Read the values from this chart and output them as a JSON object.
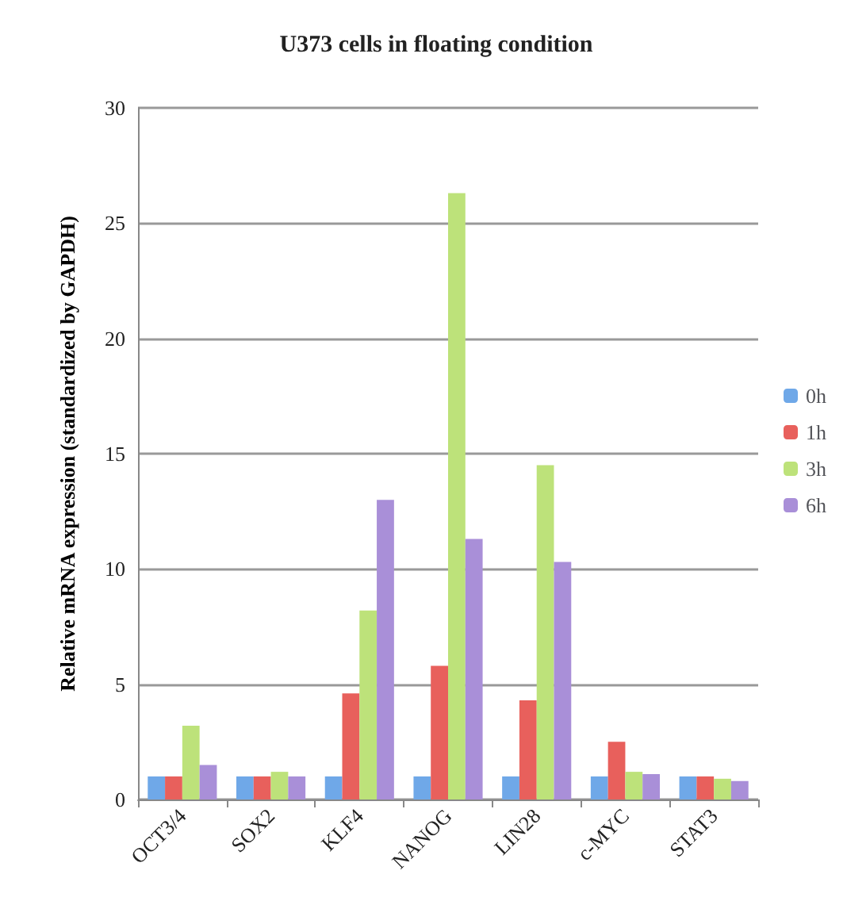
{
  "chart_data": {
    "type": "bar",
    "title": "U373 cells in floating condition",
    "ylabel": "Relative mRNA expression (standardized by GAPDH)",
    "categories": [
      "OCT3/4",
      "SOX2",
      "KLF4",
      "NANOG",
      "LIN28",
      "c-MYC",
      "STAT3"
    ],
    "series": [
      {
        "name": "0h",
        "color": "#6fa8e8",
        "values": [
          1,
          1,
          1,
          1,
          1,
          1,
          1
        ]
      },
      {
        "name": "1h",
        "color": "#e8605c",
        "values": [
          1,
          1,
          4.6,
          5.8,
          4.3,
          2.5,
          1
        ]
      },
      {
        "name": "3h",
        "color": "#bde27a",
        "values": [
          3.2,
          1.2,
          8.2,
          26.3,
          14.5,
          1.2,
          0.9
        ]
      },
      {
        "name": "6h",
        "color": "#a98fd8",
        "values": [
          1.5,
          1,
          13,
          11.3,
          10.3,
          1.1,
          0.8
        ]
      }
    ],
    "ylim": [
      0,
      30
    ],
    "yticks": [
      0,
      5,
      10,
      15,
      20,
      25,
      30
    ],
    "grid": "y",
    "legend": "right"
  }
}
